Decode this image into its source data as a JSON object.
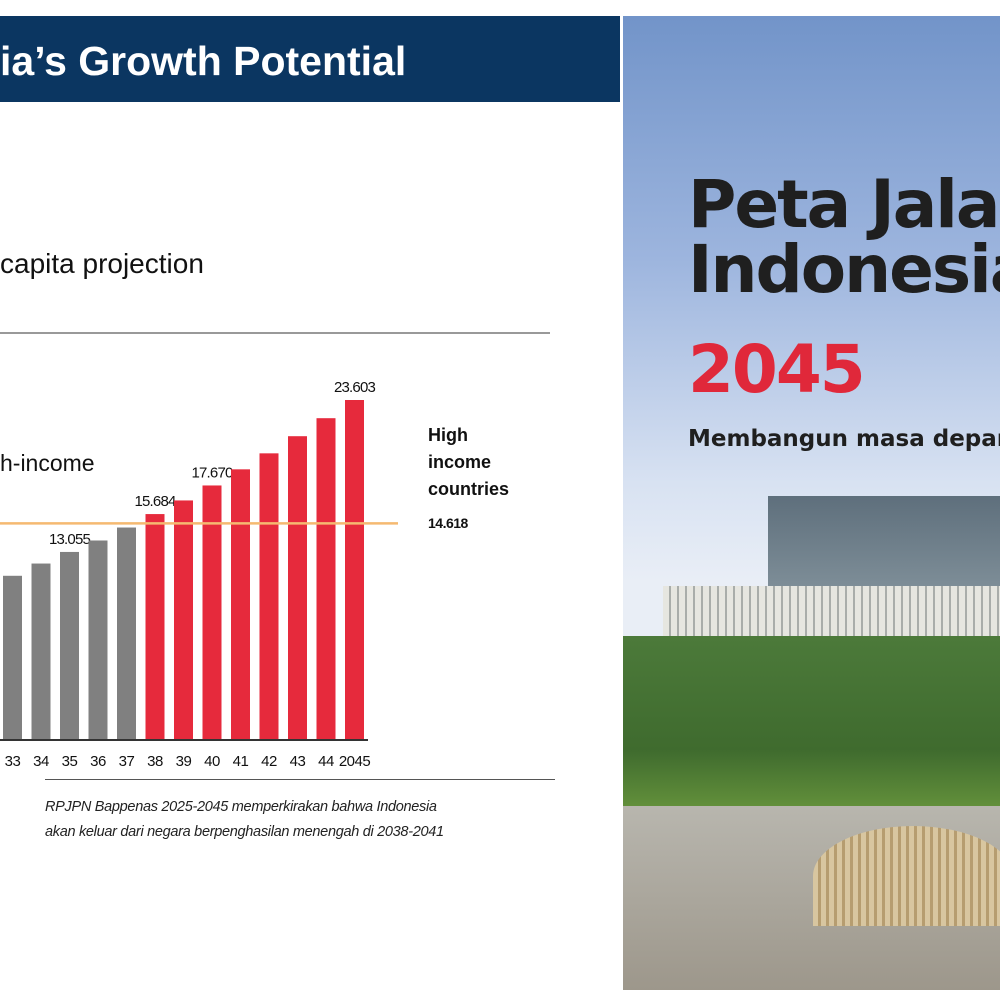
{
  "header": {
    "title": "ia’s Growth Potential",
    "bg_color": "#0b3661"
  },
  "subtitle": "capita projection",
  "partial_label": "h-income",
  "threshold": {
    "label_lines": [
      "High",
      "income",
      "countries"
    ],
    "value_label": "14.618",
    "value": 14618,
    "color": "#f5b971"
  },
  "footnote": [
    "RPJPN Bappenas 2025-2045 memperkirakan bahwa Indonesia",
    "akan keluar dari negara berpenghasilan menengah di 2038-2041"
  ],
  "chart_data": {
    "type": "bar",
    "categories": [
      "33",
      "34",
      "35",
      "36",
      "37",
      "38",
      "39",
      "40",
      "41",
      "42",
      "43",
      "44",
      "2045"
    ],
    "values": [
      11400,
      12250,
      13055,
      13850,
      14750,
      15684,
      16630,
      17670,
      18790,
      19900,
      21090,
      22340,
      23603
    ],
    "data_labels": {
      "35": "13.055",
      "38": "15.684",
      "40": "17.670",
      "2045": "23.603"
    },
    "colors": {
      "middle_income": "#808080",
      "high_income": "#e62a3c"
    },
    "high_income_from": "38",
    "ylim": [
      0,
      24000
    ],
    "grid": false
  },
  "cover": {
    "title_lines": [
      "Peta Jala",
      "Indonesia"
    ],
    "year": "2045",
    "tagline": "Membangun masa depan",
    "year_color": "#e0283a"
  }
}
